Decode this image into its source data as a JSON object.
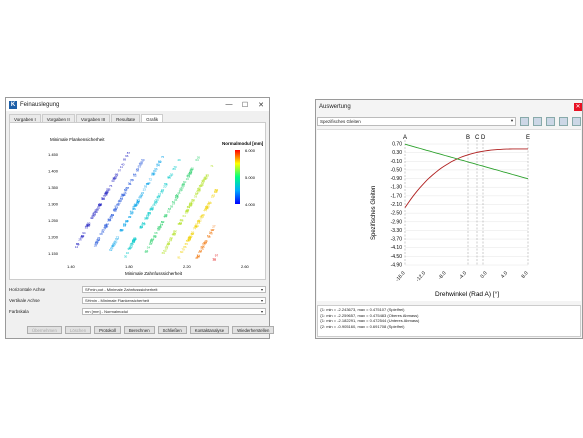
{
  "win1": {
    "title": "Feinauslegung",
    "tabs": [
      "Vorgaben I",
      "Vorgaben II",
      "Vorgaben III",
      "Resultate",
      "Grafik"
    ],
    "chart": {
      "title": "Minimale Flankensicherheit",
      "xlabel": "Minimale Zahnfusssicherheit",
      "yticks": [
        "1.450",
        "1.400",
        "1.350",
        "1.300",
        "1.250",
        "1.200",
        "1.150"
      ],
      "xticks": [
        "1.40",
        "1.80",
        "2.20",
        "2.60"
      ],
      "colorbar_title": "Normalmodul [mm]",
      "colorbar_ticks": [
        "6.000",
        "5.000",
        "4.000"
      ]
    },
    "rows": [
      {
        "label": "Horizontale Achse",
        "value": "SFmin,oot - Minimale Zahnfusssicherheit"
      },
      {
        "label": "Vertikale Achse",
        "value": "SHmin - Minimale Flankensicherheit"
      },
      {
        "label": "Farbskala",
        "value": "mn [mm] - Normalmodul"
      }
    ],
    "buttons": [
      "Übernehmen",
      "Löschen",
      "Protokoll",
      "Berechnen",
      "Schließen",
      "Kontaktanalyse",
      "Wiederherstellen"
    ]
  },
  "win2": {
    "title": "Auswertung",
    "combo": "Spezifisches Gleiten",
    "chart": {
      "ylabel": "Spezifisches Gleiten",
      "xlabel": "Drehwinkel (Rad A) [°]",
      "yticks": [
        "0.70",
        "0.30",
        "-0.10",
        "-0.50",
        "-0.90",
        "-1.30",
        "-1.70",
        "-2.10",
        "-2.50",
        "-2.90",
        "-3.30",
        "-3.70",
        "-4.10",
        "-4.50",
        "-4.90"
      ],
      "xticks": [
        "-16.0",
        "-12.0",
        "-8.0",
        "-4.0",
        "0.0",
        "4.0",
        "8.0"
      ],
      "markers": [
        "A",
        "B",
        "C",
        "D",
        "E"
      ]
    },
    "log": [
      "ζ1: min = -2.243673, max = 0.475107 (Spielfrei)",
      "ζ1: min = -2.259657, max = 0.475483 (Oberes Abmass)",
      "ζ1: min = -2.182291, max = 0.472544 (Unteres Abmass)",
      "",
      "ζ2: min = -0.905160, max = 0.691708 (Spielfrei)"
    ]
  }
}
